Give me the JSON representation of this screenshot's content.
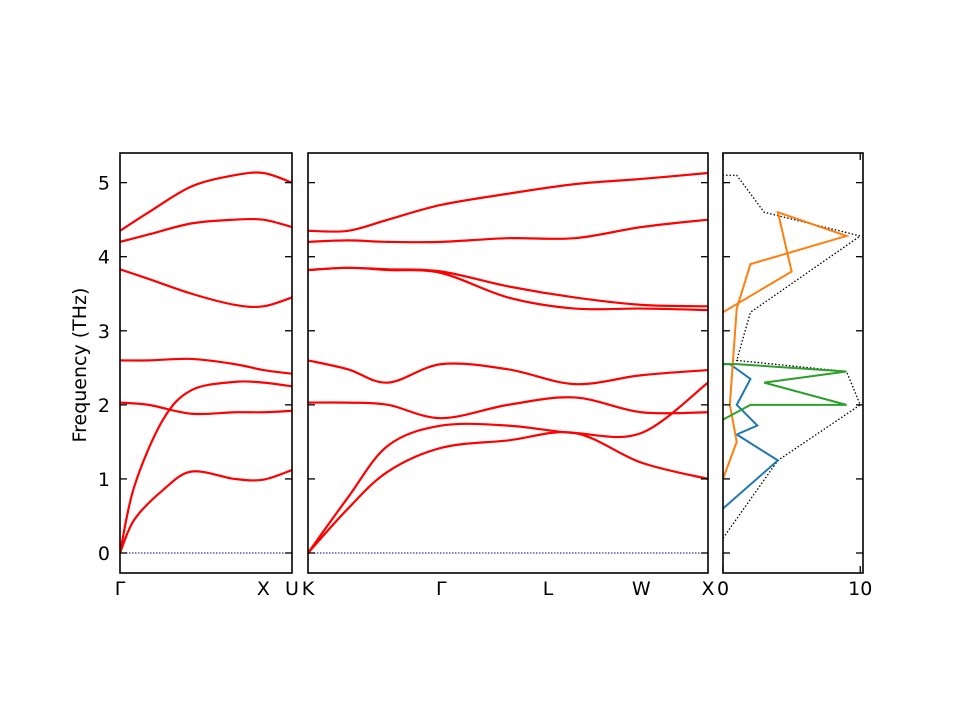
{
  "chart_data": [
    {
      "type": "line",
      "panel": "band-structure-1",
      "ylabel": "Frequency (THz)",
      "ylim": [
        -0.27,
        5.4
      ],
      "yticks": [
        "0",
        "1",
        "2",
        "3",
        "4",
        "5"
      ],
      "xticks": [
        "Γ",
        "X",
        "U"
      ],
      "x_path": [
        "Γ",
        "X",
        "U"
      ],
      "color": "#ff0000",
      "zero_line_color": "#00008b",
      "series": [
        {
          "x": [
            0,
            0.2,
            0.5,
            0.8,
            1.0,
            1.2
          ],
          "y": [
            2.6,
            2.6,
            2.62,
            2.55,
            2.47,
            2.42
          ]
        },
        {
          "x": [
            0,
            0.1,
            0.3,
            0.5,
            0.8,
            1.0,
            1.2
          ],
          "y": [
            0,
            0.9,
            1.8,
            2.2,
            2.31,
            2.3,
            2.25
          ]
        },
        {
          "x": [
            0,
            0.1,
            0.3,
            0.5,
            0.8,
            1.0,
            1.2
          ],
          "y": [
            0,
            0.45,
            0.85,
            1.1,
            1.0,
            0.99,
            1.12
          ]
        },
        {
          "x": [
            0,
            0.2,
            0.5,
            0.8,
            1.0,
            1.2
          ],
          "y": [
            2.03,
            2.0,
            1.88,
            1.9,
            1.9,
            1.92
          ]
        },
        {
          "x": [
            0,
            0.2,
            0.5,
            0.8,
            1.0,
            1.2
          ],
          "y": [
            4.35,
            4.6,
            4.95,
            5.1,
            5.13,
            5.0
          ]
        },
        {
          "x": [
            0,
            0.2,
            0.5,
            0.8,
            1.0,
            1.2
          ],
          "y": [
            4.2,
            4.3,
            4.45,
            4.5,
            4.5,
            4.4
          ]
        },
        {
          "x": [
            0,
            0.2,
            0.5,
            0.8,
            1.0,
            1.2
          ],
          "y": [
            3.83,
            3.7,
            3.5,
            3.35,
            3.33,
            3.45
          ]
        }
      ]
    },
    {
      "type": "line",
      "panel": "band-structure-2",
      "ylim": [
        -0.27,
        5.4
      ],
      "xticks": [
        "K",
        "Γ",
        "L",
        "W",
        "X"
      ],
      "x_path": [
        "K",
        "Γ",
        "L",
        "W",
        "X"
      ],
      "color": "#ff0000",
      "series": [
        {
          "x": [
            0,
            0.3,
            0.6,
            1.0,
            1.5,
            2.0,
            2.5,
            3.0
          ],
          "y": [
            0,
            0.75,
            1.45,
            1.72,
            1.72,
            1.62,
            1.62,
            2.3
          ]
        },
        {
          "x": [
            0,
            0.3,
            0.6,
            1.0,
            1.5,
            2.0,
            2.5,
            3.0
          ],
          "y": [
            0,
            0.6,
            1.1,
            1.42,
            1.52,
            1.62,
            1.22,
            1.0
          ]
        },
        {
          "x": [
            0,
            0.3,
            0.6,
            1.0,
            1.5,
            2.0,
            2.5,
            3.0
          ],
          "y": [
            2.6,
            2.48,
            2.3,
            2.55,
            2.48,
            2.28,
            2.4,
            2.47
          ]
        },
        {
          "x": [
            0,
            0.3,
            0.6,
            1.0,
            1.5,
            2.0,
            2.5,
            3.0
          ],
          "y": [
            2.03,
            2.03,
            2.0,
            1.82,
            2.0,
            2.1,
            1.9,
            1.9
          ]
        },
        {
          "x": [
            0,
            0.3,
            0.6,
            1.0,
            1.5,
            2.0,
            2.5,
            3.0
          ],
          "y": [
            4.35,
            4.35,
            4.5,
            4.7,
            4.85,
            4.98,
            5.05,
            5.13
          ]
        },
        {
          "x": [
            0,
            0.3,
            0.6,
            1.0,
            1.5,
            2.0,
            2.5,
            3.0
          ],
          "y": [
            4.2,
            4.22,
            4.2,
            4.2,
            4.25,
            4.25,
            4.4,
            4.5
          ]
        },
        {
          "x": [
            0,
            0.3,
            0.6,
            1.0,
            1.5,
            2.0,
            2.5,
            3.0
          ],
          "y": [
            3.82,
            3.85,
            3.83,
            3.8,
            3.6,
            3.45,
            3.35,
            3.33
          ]
        },
        {
          "x": [
            0,
            0.3,
            0.6,
            1.0,
            1.5,
            2.0,
            2.5,
            3.0
          ],
          "y": [
            3.82,
            3.85,
            3.82,
            3.78,
            3.45,
            3.3,
            3.3,
            3.28
          ]
        }
      ]
    },
    {
      "type": "line",
      "panel": "partial-dos",
      "xticks": [
        "0",
        "10"
      ],
      "xlim": [
        0,
        10.2
      ],
      "ylim": [
        -0.27,
        5.4
      ],
      "series": [
        {
          "name": "",
          "color": "#000000",
          "style": "dotted",
          "x": [
            0,
            4,
            10,
            9,
            1,
            2,
            10,
            3,
            1,
            0
          ],
          "y": [
            0.2,
            1.25,
            2.0,
            2.45,
            2.6,
            3.25,
            4.28,
            4.6,
            5.1,
            5.1
          ]
        },
        {
          "name": "",
          "color": "#1f77b4",
          "style": "solid",
          "x": [
            0,
            4,
            1,
            2.5,
            1,
            2,
            0.5,
            0
          ],
          "y": [
            0.6,
            1.25,
            1.6,
            1.72,
            2.0,
            2.35,
            2.55,
            2.55
          ]
        },
        {
          "name": "",
          "color": "#ff7f0e",
          "style": "solid",
          "x": [
            0,
            1,
            0.5,
            1,
            2,
            9,
            4,
            5,
            0
          ],
          "y": [
            1.0,
            1.5,
            2.0,
            3.3,
            3.9,
            4.28,
            4.6,
            3.8,
            3.25
          ]
        },
        {
          "name": "",
          "color": "#2ca02c",
          "style": "solid",
          "x": [
            0,
            2,
            9,
            3,
            9,
            1,
            0
          ],
          "y": [
            1.8,
            2.0,
            2.0,
            2.3,
            2.45,
            2.55,
            2.55
          ]
        }
      ]
    }
  ]
}
